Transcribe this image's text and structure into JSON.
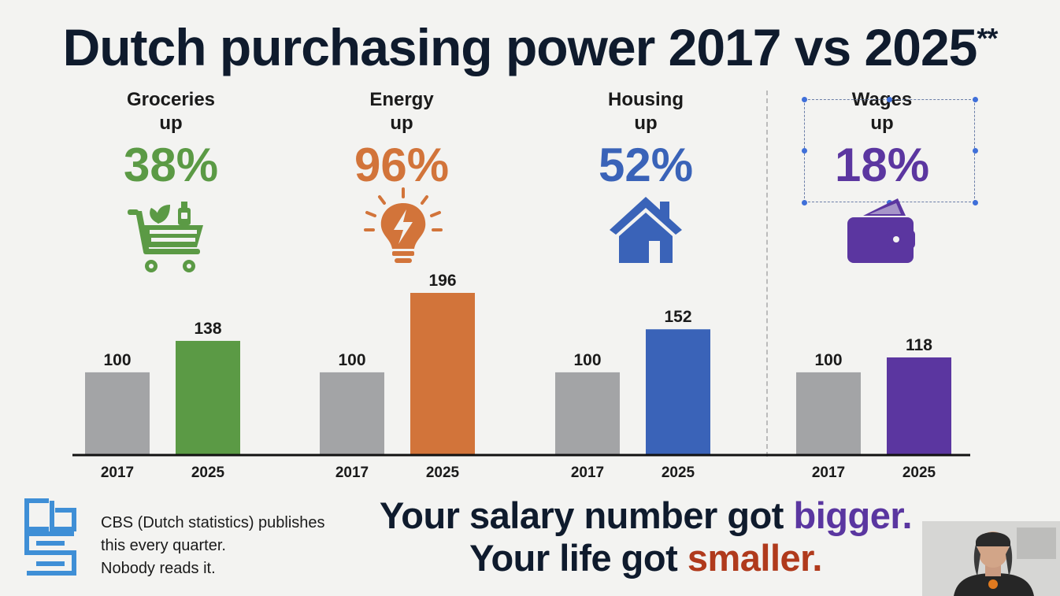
{
  "title": "Dutch purchasing power 2017 vs 2025",
  "title_mark": "**",
  "categories": [
    {
      "label": "Groceries",
      "direction": "up",
      "percent": "38%",
      "color": "#5b9a45",
      "icon": "shopping-cart-icon"
    },
    {
      "label": "Energy",
      "direction": "up",
      "percent": "96%",
      "color": "#d2743a",
      "icon": "lightbulb-icon"
    },
    {
      "label": "Housing",
      "direction": "up",
      "percent": "52%",
      "color": "#3a63b8",
      "icon": "house-icon"
    },
    {
      "label": "Wages",
      "direction": "up",
      "percent": "18%",
      "color": "#5b36a0",
      "icon": "wallet-icon"
    }
  ],
  "chart_data": {
    "type": "bar",
    "groups": [
      "Groceries",
      "Energy",
      "Housing",
      "Wages"
    ],
    "x_labels": [
      "2017",
      "2025"
    ],
    "series": [
      {
        "name": "2017",
        "values": [
          100,
          100,
          100,
          100
        ]
      },
      {
        "name": "2025",
        "values": [
          138,
          196,
          152,
          118
        ]
      }
    ],
    "baseline_color": "#a3a4a6",
    "ylim": [
      0,
      196
    ],
    "grid": false
  },
  "footer": {
    "source_lines": [
      "CBS (Dutch statistics) publishes",
      "this every quarter.",
      "Nobody reads it."
    ],
    "logo": "cbs-logo",
    "slogan_line1_a": "Your salary number got ",
    "slogan_line1_b": "bigger.",
    "slogan_line2_a": "Your life got ",
    "slogan_line2_b": "smaller."
  }
}
